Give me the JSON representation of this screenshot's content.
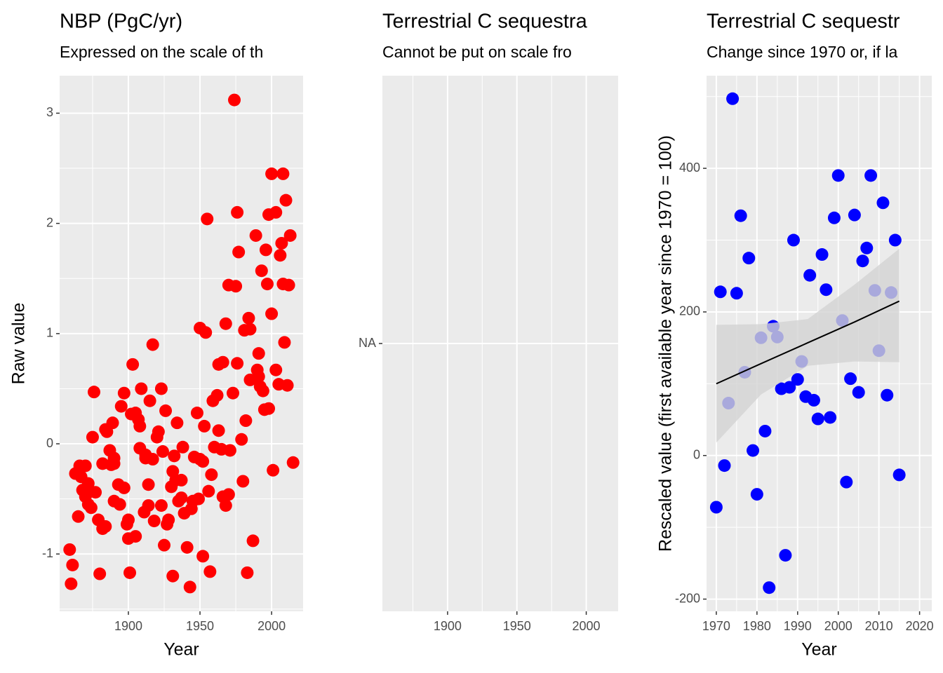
{
  "chart_data": [
    {
      "type": "scatter",
      "title": "NBP (PgC/yr)",
      "subtitle": "Expressed on the scale of th",
      "x_label": "Year",
      "y_label": "Raw value",
      "color": "#ff0000",
      "grid": true,
      "xlim": [
        1852,
        2022
      ],
      "xticks": [
        1900,
        1950,
        2000
      ],
      "xminor": [
        1875,
        1925,
        1975
      ],
      "ylim": [
        -1.52,
        3.34
      ],
      "yticks": [
        -1,
        0,
        1,
        2,
        3
      ],
      "yminor": [
        -1.5,
        -0.5,
        0.5,
        1.5,
        2.5
      ],
      "x": [
        1859,
        1861,
        1860,
        1863,
        1865,
        1866,
        1867,
        1868,
        1870,
        1870,
        1872,
        1872,
        1873,
        1874,
        1875,
        1876,
        1877,
        1879,
        1880,
        1882,
        1882,
        1884,
        1884,
        1885,
        1887,
        1888,
        1890,
        1889,
        1890,
        1890,
        1893,
        1894,
        1895,
        1897,
        1897,
        1899,
        1900,
        1900,
        1902,
        1901,
        1903,
        1905,
        1905,
        1907,
        1908,
        1908,
        1909,
        1911,
        1912,
        1912,
        1915,
        1914,
        1917,
        1917,
        1914,
        1918,
        1920,
        1921,
        1923,
        1923,
        1924,
        1925,
        1926,
        1928,
        1927,
        1930,
        1931,
        1931,
        1933,
        1934,
        1932,
        1935,
        1938,
        1937,
        1937,
        1941,
        1939,
        1944,
        1943,
        1945,
        1946,
        1948,
        1949,
        1950,
        1952,
        1952,
        1950,
        1953,
        1954,
        1955,
        1956,
        1957,
        1959,
        1958,
        1962,
        1960,
        1963,
        1963,
        1965,
        1966,
        1966,
        1968,
        1968,
        1970,
        1971,
        1973,
        1970,
        1975,
        1974,
        1976,
        1976,
        1977,
        1979,
        1980,
        1981,
        1982,
        1983,
        1984,
        1985,
        1985,
        1987,
        1989,
        1990,
        1991,
        1991,
        1992,
        1993,
        1994,
        1996,
        1995,
        1997,
        1998,
        1998,
        2000,
        2000,
        2001,
        2003,
        2003,
        2005,
        2006,
        2007,
        2008,
        2008,
        2009,
        2010,
        2011,
        2012,
        2013,
        2015
      ],
      "values": [
        -0.96,
        -1.1,
        -1.27,
        -0.27,
        -0.66,
        -0.2,
        -0.3,
        -0.42,
        -0.2,
        -0.48,
        -0.36,
        -0.55,
        -0.43,
        -0.58,
        0.06,
        0.47,
        -0.44,
        -0.69,
        -1.18,
        -0.77,
        -0.18,
        0.13,
        -0.75,
        0.11,
        -0.06,
        -0.19,
        -0.18,
        0.19,
        -0.52,
        -0.13,
        -0.37,
        -0.55,
        0.34,
        0.46,
        -0.4,
        -0.73,
        -0.69,
        -0.86,
        0.27,
        -1.17,
        0.72,
        0.28,
        -0.84,
        0.22,
        0.16,
        -0.04,
        0.5,
        -0.62,
        -0.1,
        -0.13,
        0.39,
        -0.37,
        0.9,
        -0.14,
        -0.56,
        -0.7,
        0.06,
        0.11,
        0.5,
        -0.56,
        -0.07,
        -0.92,
        0.3,
        -0.69,
        -0.73,
        -0.39,
        -0.25,
        -1.2,
        -0.33,
        0.19,
        -0.11,
        -0.52,
        -0.03,
        -0.49,
        -0.33,
        -0.94,
        -0.63,
        -0.59,
        -1.3,
        -0.52,
        -0.12,
        0.28,
        -0.5,
        -0.14,
        -1.02,
        -0.16,
        1.05,
        0.16,
        1.01,
        2.04,
        -0.43,
        -1.16,
        0.39,
        -0.28,
        0.44,
        -0.03,
        0.72,
        0.12,
        -0.05,
        0.74,
        -0.48,
        1.09,
        -0.56,
        -0.46,
        -0.06,
        0.46,
        1.44,
        1.43,
        3.12,
        2.1,
        0.73,
        1.74,
        0.04,
        -0.34,
        1.03,
        0.21,
        -1.17,
        1.14,
        1.04,
        0.58,
        -0.88,
        1.89,
        0.67,
        0.82,
        0.61,
        0.52,
        1.57,
        0.48,
        1.76,
        0.31,
        1.45,
        0.32,
        2.08,
        2.45,
        1.18,
        -0.24,
        0.67,
        2.1,
        0.54,
        1.71,
        1.82,
        2.45,
        1.45,
        0.92,
        2.21,
        0.53,
        1.44,
        1.89,
        -0.17
      ]
    },
    {
      "type": "scatter",
      "title": "Terrestrial C sequestra",
      "subtitle": "Cannot be put on scale fro",
      "grid": true,
      "xlim": [
        1853,
        2023
      ],
      "xticks": [
        1900,
        1950,
        2000
      ],
      "xminor": [
        1875,
        1925,
        1975
      ],
      "ylim": [
        -1,
        1
      ],
      "yticks": [
        {
          "value": 0,
          "label": "NA"
        }
      ]
    },
    {
      "type": "scatter",
      "title": "Terrestrial C sequestr",
      "subtitle": "Change since 1970 or, if la",
      "x_label": "Year",
      "y_label": "Rescaled value (first available year since 1970 = 100)",
      "color": "#0000ff",
      "grid": true,
      "xlim": [
        1967.6,
        2023
      ],
      "xticks": [
        1970,
        1980,
        1990,
        2000,
        2010,
        2020
      ],
      "xminor": [
        1975,
        1985,
        1995,
        2005,
        2015
      ],
      "ylim": [
        -217,
        529
      ],
      "yticks": [
        -200,
        0,
        200,
        400
      ],
      "yminor": [
        -100,
        100,
        300,
        500
      ],
      "x": [
        1970,
        1971,
        1972,
        1973,
        1974,
        1975,
        1976,
        1977,
        1978,
        1979,
        1980,
        1981,
        1982,
        1983,
        1984,
        1985,
        1986,
        1987,
        1988,
        1989,
        1990,
        1991,
        1992,
        1993,
        1994,
        1995,
        1996,
        1997,
        1998,
        1999,
        2000,
        2001,
        2002,
        2003,
        2004,
        2005,
        2006,
        2007,
        2008,
        2009,
        2010,
        2011,
        2012,
        2013,
        2014,
        2015
      ],
      "values": [
        -72,
        228,
        -14,
        73,
        497,
        226,
        334,
        116,
        275,
        7,
        -54,
        164,
        34,
        -184,
        180,
        165,
        93,
        -139,
        95,
        300,
        106,
        131,
        82,
        251,
        77,
        51,
        280,
        231,
        53,
        331,
        390,
        188,
        -37,
        107,
        335,
        88,
        271,
        289,
        390,
        230,
        146,
        352,
        84,
        227,
        300,
        -27
      ],
      "fit": {
        "color": "#000000",
        "band_color": "#d3d3d3",
        "x": [
          1970,
          1981,
          1992.5,
          2004,
          2015
        ],
        "values": [
          100,
          128,
          157,
          186,
          215
        ],
        "lower": [
          18,
          85,
          125,
          131,
          130
        ],
        "upper": [
          182,
          183,
          190,
          238,
          288
        ]
      }
    }
  ]
}
